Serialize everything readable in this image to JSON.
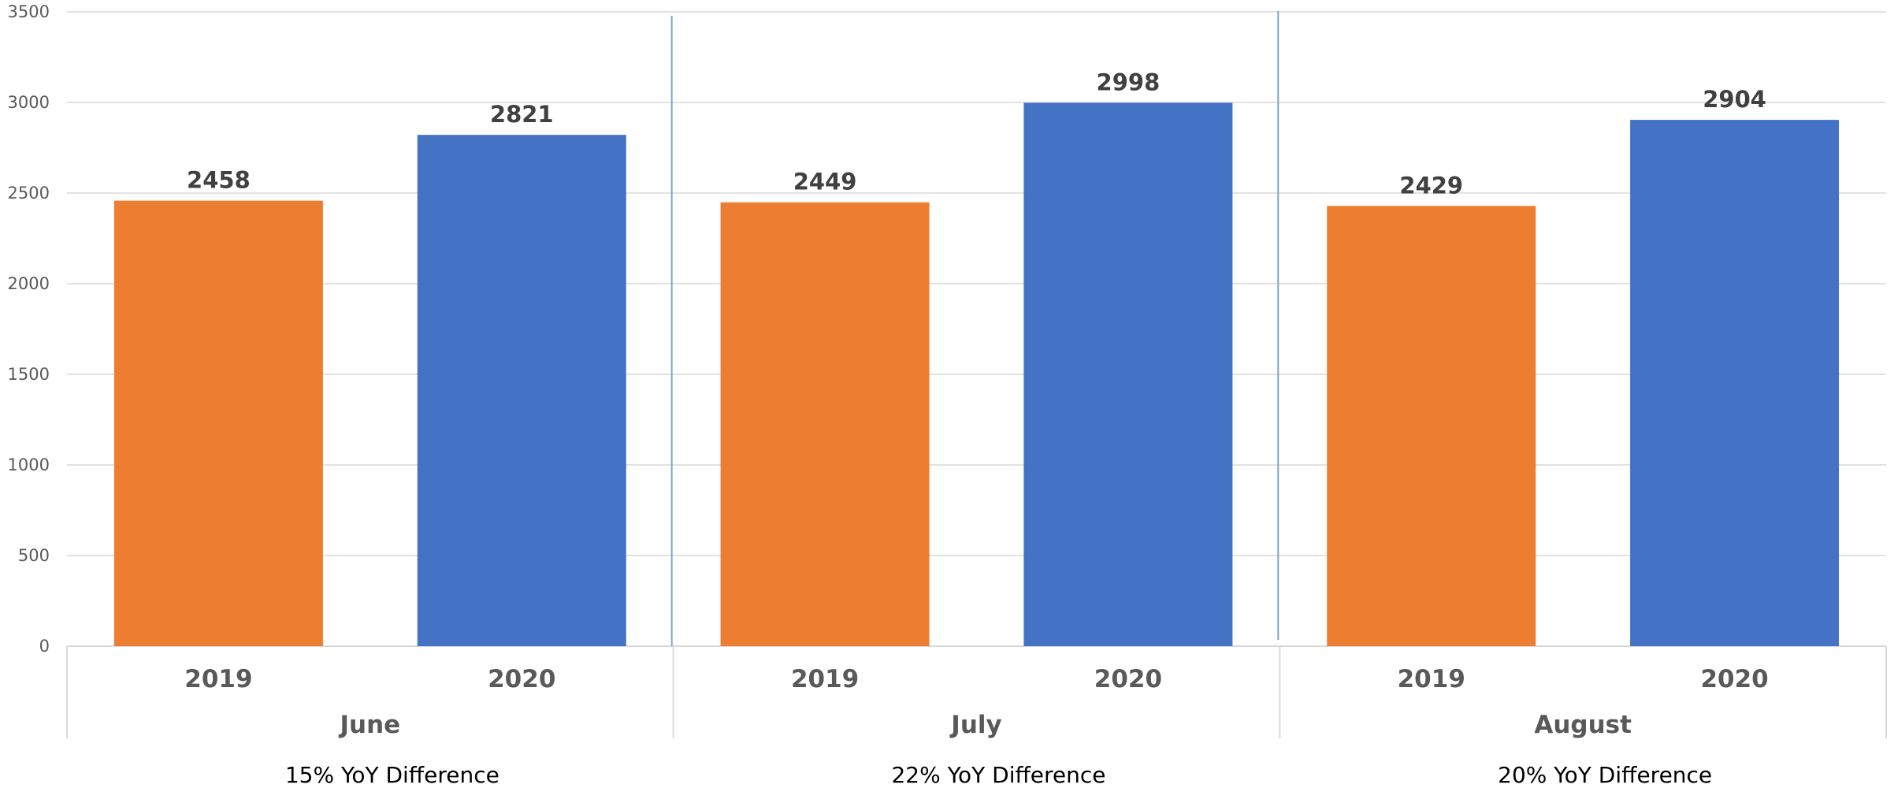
{
  "chart_data": {
    "type": "bar",
    "title": "",
    "xlabel": "",
    "ylabel": "",
    "ylim": [
      0,
      3500
    ],
    "yticks": [
      0,
      500,
      1000,
      1500,
      2000,
      2500,
      3000,
      3500
    ],
    "grid": true,
    "legend": "none",
    "groups": [
      {
        "name": "June",
        "note": "15% YoY  Difference",
        "bars": [
          {
            "category": "2019",
            "value": 2458,
            "color": "#ED7D31"
          },
          {
            "category": "2020",
            "value": 2821,
            "color": "#4472C4"
          }
        ]
      },
      {
        "name": "July",
        "note": "22% YoY  Difference",
        "bars": [
          {
            "category": "2019",
            "value": 2449,
            "color": "#ED7D31"
          },
          {
            "category": "2020",
            "value": 2998,
            "color": "#4472C4"
          }
        ]
      },
      {
        "name": "August",
        "note": "20% YoY  Difference",
        "bars": [
          {
            "category": "2019",
            "value": 2429,
            "color": "#ED7D31"
          },
          {
            "category": "2020",
            "value": 2904,
            "color": "#4472C4"
          }
        ]
      }
    ]
  }
}
